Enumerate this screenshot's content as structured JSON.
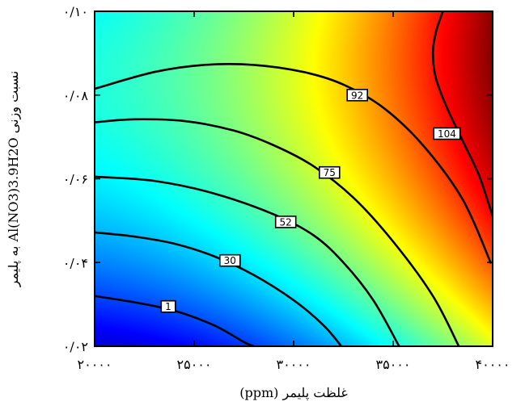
{
  "chart_data": {
    "type": "contour",
    "x": {
      "min": 20000,
      "max": 40000
    },
    "y": {
      "min": 0.02,
      "max": 0.1
    },
    "xlabel": "غلظت پلیمر (ppm)",
    "ylabel": "نسبت وزنی Al(NO3)3.9H2O به پلیمر",
    "x_ticks": [
      {
        "value": 20000,
        "label": "۲۰۰۰۰"
      },
      {
        "value": 25000,
        "label": "۲۵۰۰۰"
      },
      {
        "value": 30000,
        "label": "۳۰۰۰۰"
      },
      {
        "value": 35000,
        "label": "۳۵۰۰۰"
      },
      {
        "value": 40000,
        "label": "۴۰۰۰۰"
      }
    ],
    "y_ticks": [
      {
        "value": 0.02,
        "label": "۰/۰۲"
      },
      {
        "value": 0.04,
        "label": "۰/۰۴"
      },
      {
        "value": 0.06,
        "label": "۰/۰۶"
      },
      {
        "value": 0.08,
        "label": "۰/۰۸"
      },
      {
        "value": 0.1,
        "label": "۰/۱۰"
      }
    ],
    "contours": [
      {
        "level": 1,
        "label": "1",
        "points": [
          [
            20000,
            0.032
          ],
          [
            22000,
            0.0305
          ],
          [
            24000,
            0.0285
          ],
          [
            26000,
            0.025
          ],
          [
            27500,
            0.021
          ],
          [
            28000,
            0.02
          ]
        ],
        "label_at": [
          23700,
          0.0295
        ]
      },
      {
        "level": 30,
        "label": "30",
        "points": [
          [
            20000,
            0.0472
          ],
          [
            22000,
            0.0462
          ],
          [
            24000,
            0.0445
          ],
          [
            26000,
            0.0415
          ],
          [
            28000,
            0.037
          ],
          [
            30000,
            0.031
          ],
          [
            31500,
            0.025
          ],
          [
            32400,
            0.02
          ]
        ],
        "label_at": [
          26800,
          0.0405
        ]
      },
      {
        "level": 52,
        "label": "52",
        "points": [
          [
            20000,
            0.0605
          ],
          [
            23000,
            0.0595
          ],
          [
            26000,
            0.0565
          ],
          [
            29000,
            0.0515
          ],
          [
            31000,
            0.0465
          ],
          [
            32500,
            0.04
          ],
          [
            34000,
            0.031
          ],
          [
            35300,
            0.02
          ]
        ],
        "label_at": [
          29600,
          0.0497
        ]
      },
      {
        "level": 75,
        "label": "75",
        "points": [
          [
            20000,
            0.0735
          ],
          [
            22000,
            0.0742
          ],
          [
            24500,
            0.0738
          ],
          [
            27000,
            0.0715
          ],
          [
            29000,
            0.068
          ],
          [
            31000,
            0.063
          ],
          [
            33000,
            0.0555
          ],
          [
            35000,
            0.045
          ],
          [
            37000,
            0.032
          ],
          [
            38300,
            0.02
          ]
        ],
        "label_at": [
          31800,
          0.0615
        ]
      },
      {
        "level": 92,
        "label": "92",
        "points": [
          [
            20000,
            0.0815
          ],
          [
            23000,
            0.0855
          ],
          [
            25500,
            0.0872
          ],
          [
            28000,
            0.0872
          ],
          [
            30500,
            0.0855
          ],
          [
            32500,
            0.0825
          ],
          [
            34500,
            0.077
          ],
          [
            36500,
            0.068
          ],
          [
            38500,
            0.055
          ],
          [
            39900,
            0.04
          ]
        ],
        "label_at": [
          33200,
          0.08
        ]
      },
      {
        "level": 104,
        "label": "104",
        "points": [
          [
            37500,
            0.1
          ],
          [
            37150,
            0.095
          ],
          [
            37000,
            0.09
          ],
          [
            37150,
            0.084
          ],
          [
            37700,
            0.077
          ],
          [
            38500,
            0.069
          ],
          [
            39300,
            0.061
          ],
          [
            39800,
            0.054
          ],
          [
            40000,
            0.051
          ]
        ],
        "label_at": [
          37700,
          0.0708
        ]
      }
    ],
    "colormap": "jet",
    "grid": false,
    "legend": "none"
  }
}
